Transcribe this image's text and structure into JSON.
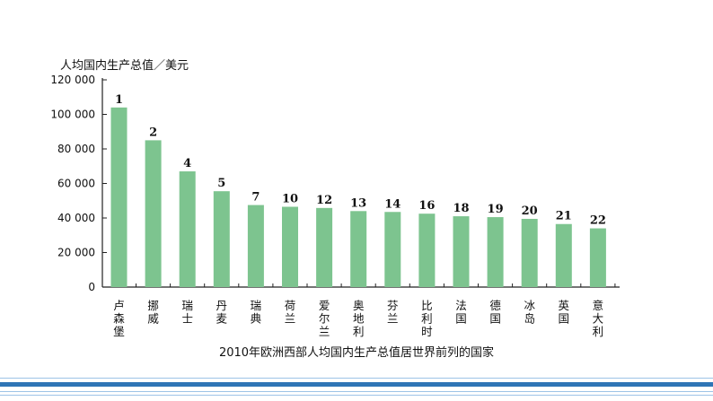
{
  "chart_data": {
    "type": "bar",
    "ylabel": "人均国内生产总值／美元",
    "xlabel": "2010年欧洲西部人均国内生产总值居世界前列的国家",
    "ylim": [
      0,
      120000
    ],
    "yticks": [
      0,
      20000,
      40000,
      60000,
      80000,
      100000,
      120000
    ],
    "ytick_labels": [
      "0",
      "20 000",
      "40 000",
      "60 000",
      "80 000",
      "100 000",
      "120 000"
    ],
    "categories": [
      "卢森堡",
      "挪威",
      "瑞士",
      "丹麦",
      "瑞典",
      "荷兰",
      "爱尔兰",
      "奥地利",
      "芬兰",
      "比利时",
      "法国",
      "德国",
      "冰岛",
      "英国",
      "意大利"
    ],
    "ranks": [
      "1",
      "2",
      "4",
      "5",
      "7",
      "10",
      "12",
      "13",
      "14",
      "16",
      "18",
      "19",
      "20",
      "21",
      "22"
    ],
    "values": [
      104000,
      85000,
      67000,
      55500,
      47500,
      46500,
      45800,
      44000,
      43500,
      42500,
      41000,
      40500,
      39500,
      36500,
      34000
    ],
    "bar_color": "#7dc48f",
    "grid": false
  }
}
